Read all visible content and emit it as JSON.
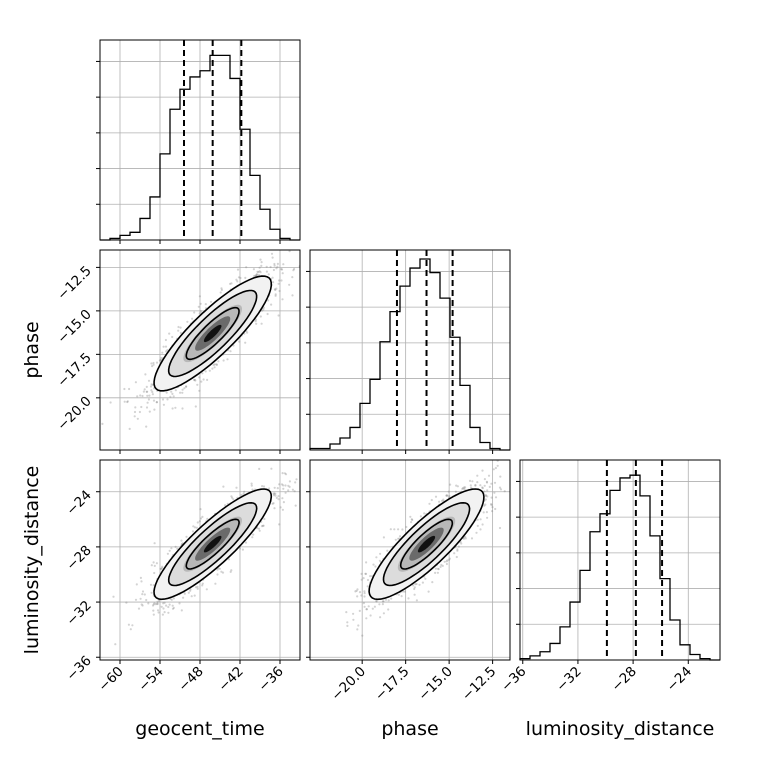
{
  "chart_data": {
    "type": "corner",
    "parameters": [
      "geocent_time",
      "phase",
      "luminosity_distance"
    ],
    "quantiles": {
      "geocent_time": [
        -50.4,
        -46.1,
        -41.8
      ],
      "phase": [
        -18.0,
        -16.3,
        -14.8
      ],
      "luminosity_distance": [
        -29.9,
        -27.8,
        -25.9
      ]
    },
    "panels": [
      {
        "id": "hist-geocent_time",
        "kind": "hist",
        "param": "geocent_time",
        "xlim": [
          -63,
          -33
        ],
        "bins": [
          -63,
          -61.5,
          -60,
          -58.5,
          -57,
          -55.5,
          -54,
          -52.5,
          -51,
          -49.5,
          -48,
          -46.5,
          -45,
          -43.5,
          -42,
          -40.5,
          -39,
          -37.5,
          -36,
          -34.5,
          -33
        ],
        "counts": [
          0,
          1,
          3,
          5,
          14,
          28,
          56,
          85,
          98,
          106,
          110,
          120,
          120,
          105,
          72,
          42,
          20,
          7,
          1,
          0
        ],
        "ymax": 130,
        "xticks": [],
        "ticklabels": []
      },
      {
        "id": "hist-phase",
        "kind": "hist",
        "param": "phase",
        "xlim": [
          -23,
          -11.5
        ],
        "bins": [
          -23,
          -22.425,
          -21.85,
          -21.275,
          -20.7,
          -20.125,
          -19.55,
          -18.975,
          -18.4,
          -17.825,
          -17.25,
          -16.675,
          -16.1,
          -15.525,
          -14.95,
          -14.375,
          -13.8,
          -13.225,
          -12.65,
          -12.075,
          -11.5
        ],
        "counts": [
          1,
          1,
          4,
          8,
          15,
          31,
          47,
          72,
          92,
          109,
          121,
          127,
          118,
          101,
          75,
          43,
          15,
          5,
          1,
          0
        ],
        "ymax": 133,
        "xticks": [],
        "ticklabels": []
      },
      {
        "id": "hist-luminosity_distance",
        "kind": "hist",
        "param": "luminosity_distance",
        "xlim": [
          -36.2,
          -21.7
        ],
        "bins": [
          -36.2,
          -35.475,
          -34.75,
          -34.025,
          -33.3,
          -32.575,
          -31.85,
          -31.125,
          -30.4,
          -29.675,
          -28.95,
          -28.225,
          -27.5,
          -26.775,
          -26.05,
          -25.325,
          -24.6,
          -23.875,
          -23.15,
          -22.425,
          -21.7
        ],
        "counts": [
          1,
          3,
          6,
          12,
          24,
          42,
          65,
          93,
          106,
          123,
          132,
          134,
          119,
          90,
          59,
          29,
          11,
          4,
          1,
          0
        ],
        "ymax": 145,
        "xticks": [
          -36,
          -32,
          -28,
          -24
        ],
        "ticklabels": [
          "−36",
          "−32",
          "−28",
          "−24"
        ]
      },
      {
        "id": "scatter-geocent_time-phase",
        "kind": "scatter",
        "xparam": "geocent_time",
        "yparam": "phase",
        "xlim": [
          -63,
          -33
        ],
        "ylim": [
          -23,
          -11.5
        ],
        "mean": [
          -46.1,
          -16.3
        ],
        "sd": [
          4.4,
          1.65
        ],
        "rho": 0.86,
        "npoints": 1500,
        "yticks": [
          -12.5,
          -15.0,
          -17.5,
          -20.0
        ],
        "yticklabels": [
          "−12.5",
          "−15.0",
          "−17.5",
          "−20.0"
        ]
      },
      {
        "id": "scatter-geocent_time-luminosity_distance",
        "kind": "scatter",
        "xparam": "geocent_time",
        "yparam": "luminosity_distance",
        "xlim": [
          -63,
          -33
        ],
        "ylim": [
          -36.2,
          -21.7
        ],
        "mean": [
          -46.1,
          -27.8
        ],
        "sd": [
          4.4,
          2.0
        ],
        "rho": 0.87,
        "npoints": 1500,
        "xticks": [
          -60,
          -54,
          -48,
          -42,
          -36
        ],
        "xticklabels": [
          "−60",
          "−54",
          "−48",
          "−42",
          "−36"
        ],
        "yticks": [
          -24,
          -28,
          -32,
          -36
        ],
        "yticklabels": [
          "−24",
          "−28",
          "−32",
          "−36"
        ]
      },
      {
        "id": "scatter-phase-luminosity_distance",
        "kind": "scatter",
        "xparam": "phase",
        "yparam": "luminosity_distance",
        "xlim": [
          -23,
          -11.5
        ],
        "ylim": [
          -36.2,
          -21.7
        ],
        "mean": [
          -16.3,
          -27.8
        ],
        "sd": [
          1.65,
          2.0
        ],
        "rho": 0.85,
        "npoints": 1500,
        "xticks": [
          -20.0,
          -17.5,
          -15.0,
          -12.5
        ],
        "xticklabels": [
          "−20.0",
          "−17.5",
          "−15.0",
          "−12.5"
        ]
      }
    ],
    "axis_labels": {
      "x": [
        "geocent_time",
        "phase",
        "luminosity_distance"
      ],
      "y": [
        "phase",
        "luminosity_distance"
      ]
    },
    "grid": true,
    "colors": {
      "line": "#000000",
      "points": "#808080",
      "grid": "#b0b0b0"
    }
  }
}
